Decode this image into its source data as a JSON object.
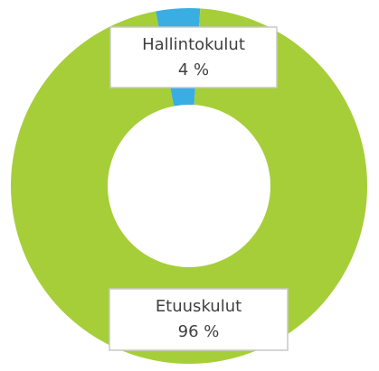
{
  "chart_data": {
    "type": "pie",
    "categories": [
      "Hallintokulut",
      "Etuuskulut"
    ],
    "values": [
      4,
      96
    ],
    "value_labels": [
      "4 %",
      "96 %"
    ],
    "colors": [
      "#3aaee2",
      "#a6ce39"
    ]
  }
}
